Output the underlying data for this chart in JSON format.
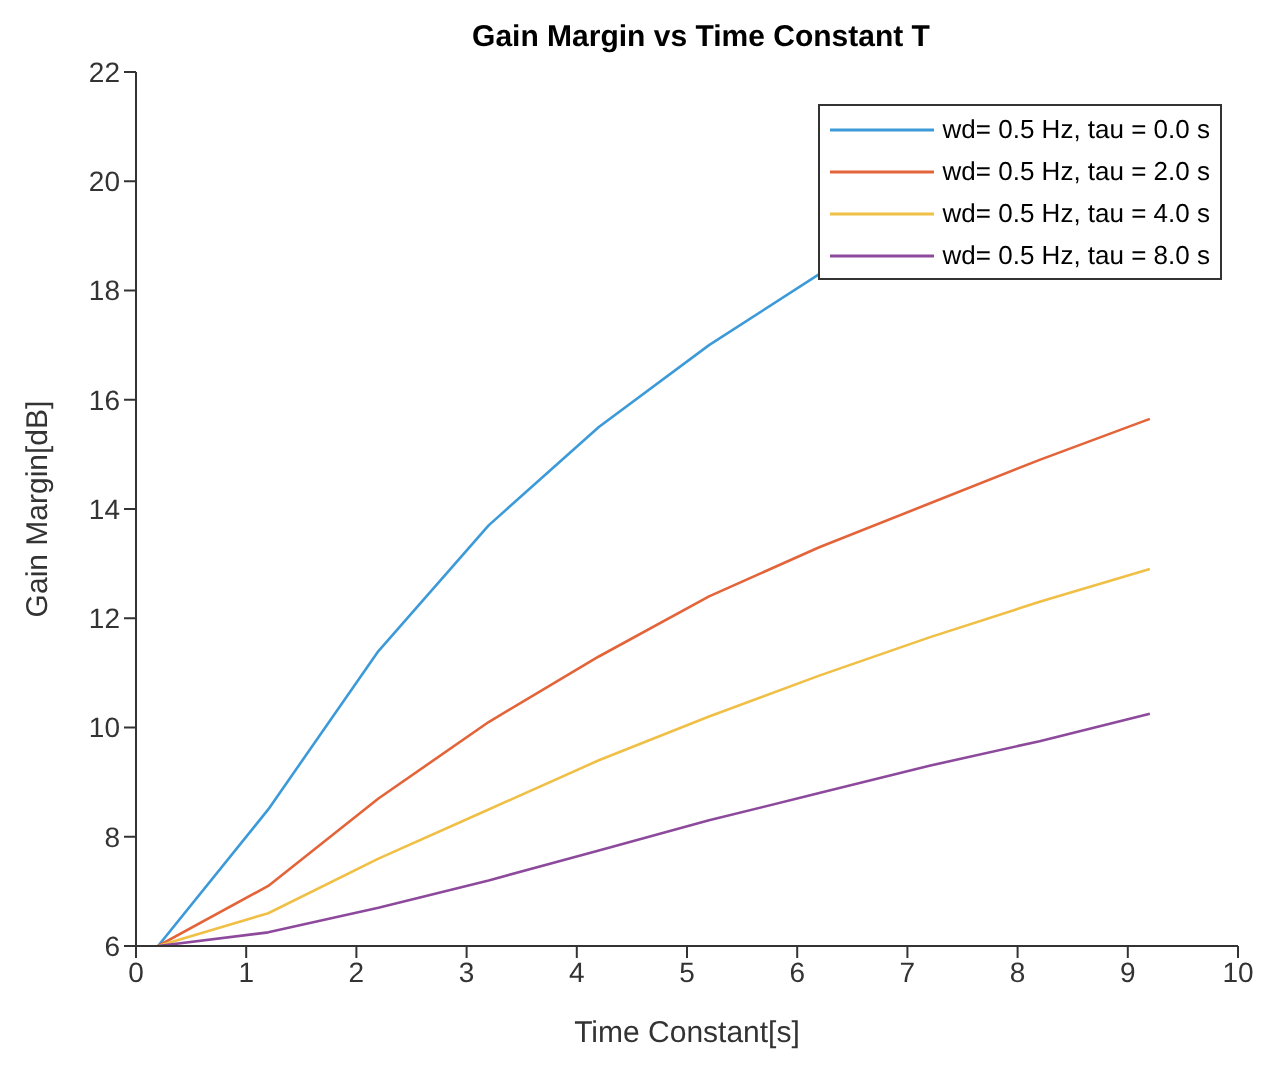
{
  "chart_data": {
    "type": "line",
    "title": "Gain Margin vs Time Constant T",
    "xlabel": "Time Constant[s]",
    "ylabel": "Gain Margin[dB]",
    "x": [
      0.2,
      1.2,
      2.2,
      3.2,
      4.2,
      5.2,
      6.2,
      7.2,
      8.2,
      9.2
    ],
    "series": [
      {
        "name": "wd= 0.5 Hz, tau = 0.0 s",
        "color": "#3d9ad9",
        "values": [
          6,
          8.5,
          11.4,
          13.7,
          15.5,
          17.0,
          18.3,
          null,
          null,
          null
        ]
      },
      {
        "name": "wd= 0.5 Hz, tau = 2.0 s",
        "color": "#e4643a",
        "values": [
          6,
          7.1,
          8.7,
          10.1,
          11.3,
          12.4,
          13.3,
          14.1,
          14.9,
          15.65
        ]
      },
      {
        "name": "wd= 0.5 Hz, tau = 4.0 s",
        "color": "#f0bf45",
        "values": [
          6,
          6.6,
          7.6,
          8.5,
          9.4,
          10.2,
          10.95,
          11.65,
          12.3,
          12.9
        ]
      },
      {
        "name": "wd= 0.5 Hz, tau = 8.0 s",
        "color": "#8d4a9c",
        "values": [
          6,
          6.25,
          6.7,
          7.2,
          7.75,
          8.3,
          8.8,
          9.3,
          9.75,
          10.25
        ]
      }
    ],
    "xlim": [
      0,
      10
    ],
    "xticks": [
      0,
      1,
      2,
      3,
      4,
      5,
      6,
      7,
      8,
      9,
      10
    ],
    "ylim": [
      6,
      22
    ],
    "yticks": [
      6,
      8,
      10,
      12,
      14,
      16,
      18,
      20,
      22
    ],
    "legend": "top right",
    "grid": false,
    "marker": "none",
    "line_style": "solid"
  }
}
